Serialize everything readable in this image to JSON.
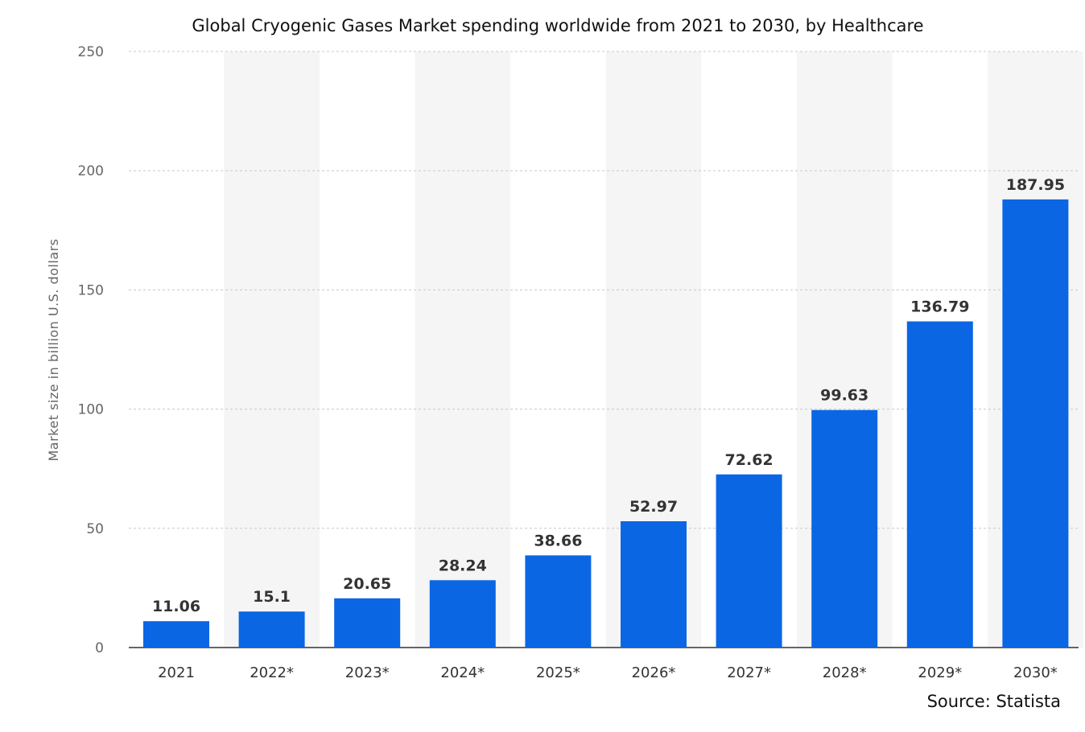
{
  "chart_data": {
    "type": "bar",
    "title": "Global Cryogenic Gases Market spending worldwide from 2021 to 2030, by Healthcare",
    "xlabel": "",
    "ylabel": "Market size in billion U.S. dollars",
    "categories": [
      "2021",
      "2022*",
      "2023*",
      "2024*",
      "2025*",
      "2026*",
      "2027*",
      "2028*",
      "2029*",
      "2030*"
    ],
    "values": [
      11.06,
      15.1,
      20.65,
      28.24,
      38.66,
      52.97,
      72.62,
      99.63,
      136.79,
      187.95
    ],
    "value_labels": [
      "11.06",
      "15.1",
      "20.65",
      "28.24",
      "38.66",
      "52.97",
      "72.62",
      "99.63",
      "136.79",
      "187.95"
    ],
    "ylim": [
      0,
      250
    ],
    "yticks": [
      "0",
      "50",
      "100",
      "150",
      "200",
      "250"
    ],
    "grid": true,
    "bar_color": "#0b66e4",
    "alt_band_color": "#f5f5f5"
  },
  "source": "Source: Statista"
}
